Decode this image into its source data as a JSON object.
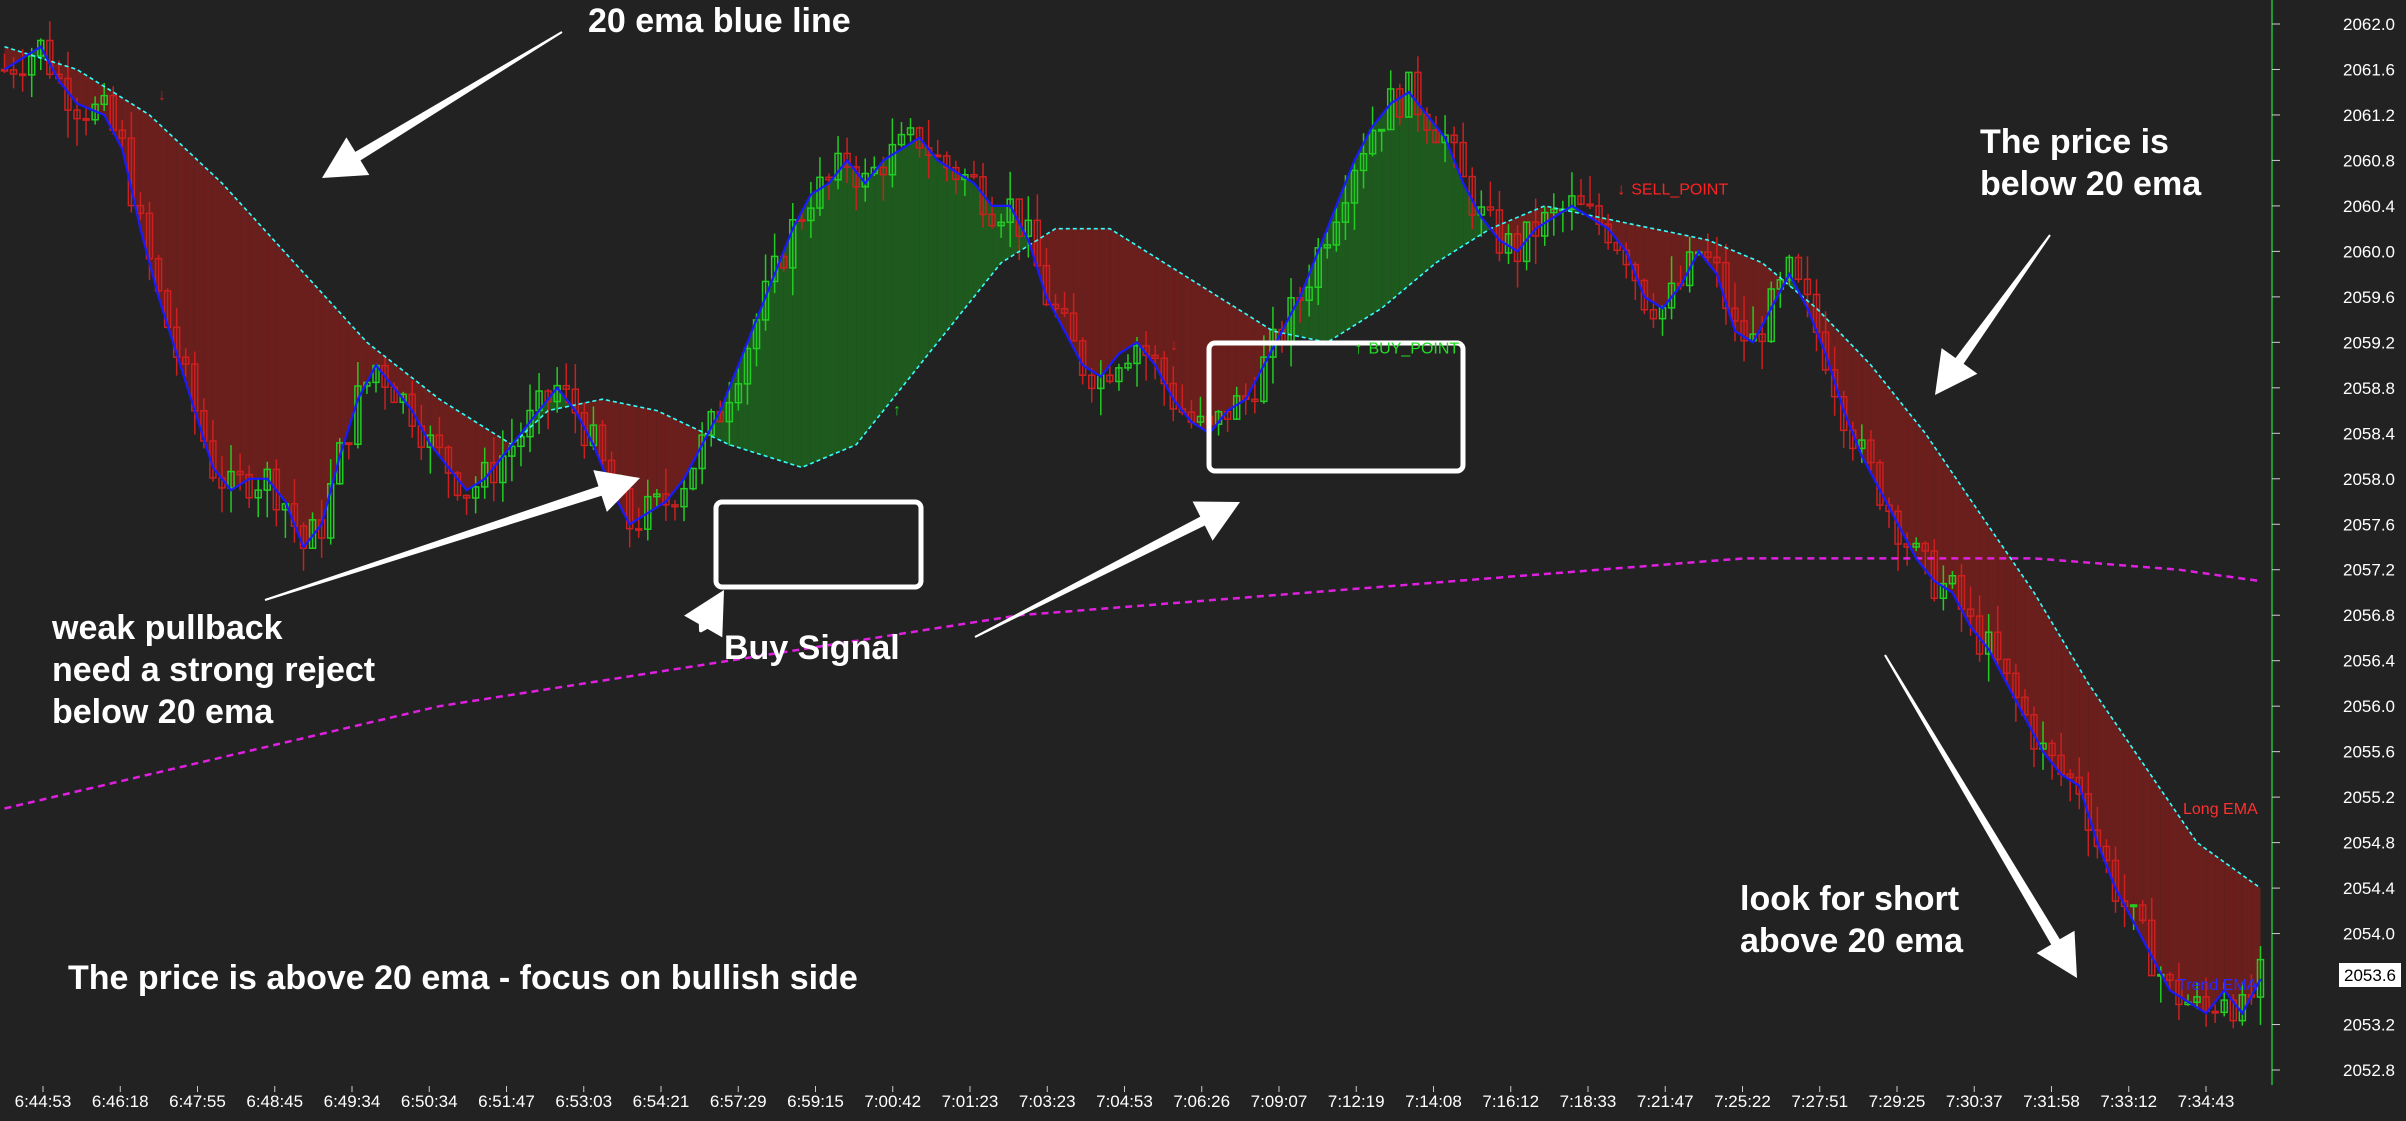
{
  "chart_data": {
    "type": "line",
    "title": "",
    "xlabel": "",
    "ylabel": "",
    "y_range": [
      2052.6,
      2062.1
    ],
    "y_ticks": [
      2062.0,
      2061.6,
      2061.2,
      2060.8,
      2060.4,
      2060.0,
      2059.6,
      2059.2,
      2058.8,
      2058.4,
      2058.0,
      2057.6,
      2057.2,
      2056.8,
      2056.4,
      2056.0,
      2055.6,
      2055.2,
      2054.8,
      2054.4,
      2054.0,
      2053.2,
      2052.8
    ],
    "y_tick_labels": [
      "2062.0",
      "2061.6",
      "2061.2",
      "2060.8",
      "2060.4",
      "2060.0",
      "2059.6",
      "2059.2",
      "2058.8",
      "2058.4",
      "2058.0",
      "2057.6",
      "2057.2",
      "2056.8",
      "2056.4",
      "2056.0",
      "2055.6",
      "2055.2",
      "2054.8",
      "2054.4",
      "2054.0",
      "2053.2",
      "2052.8"
    ],
    "current_price": "2053.6",
    "x_tick_labels": [
      "6:44:53",
      "6:46:18",
      "6:47:55",
      "6:48:45",
      "6:49:34",
      "6:50:34",
      "6:51:47",
      "6:53:03",
      "6:54:21",
      "6:57:29",
      "6:59:15",
      "7:00:42",
      "7:01:23",
      "7:03:23",
      "7:04:53",
      "7:06:26",
      "7:09:07",
      "7:12:19",
      "7:14:08",
      "7:16:12",
      "7:18:33",
      "7:21:47",
      "7:25:22",
      "7:27:51",
      "7:29:25",
      "7:30:37",
      "7:31:58",
      "7:33:12",
      "7:34:43"
    ],
    "price_path": [
      [
        0,
        2061.6
      ],
      [
        4,
        2061.8
      ],
      [
        6,
        2061.5
      ],
      [
        8,
        2061.3
      ],
      [
        11,
        2061.2
      ],
      [
        13,
        2060.9
      ],
      [
        15,
        2060.2
      ],
      [
        17,
        2059.6
      ],
      [
        19,
        2059.1
      ],
      [
        21,
        2058.6
      ],
      [
        23,
        2058.1
      ],
      [
        25,
        2057.9
      ],
      [
        27,
        2058.0
      ],
      [
        29,
        2058.0
      ],
      [
        31,
        2057.8
      ],
      [
        33,
        2057.4
      ],
      [
        35,
        2057.6
      ],
      [
        37,
        2058.2
      ],
      [
        39,
        2058.7
      ],
      [
        41,
        2059.0
      ],
      [
        43,
        2058.8
      ],
      [
        45,
        2058.6
      ],
      [
        47,
        2058.3
      ],
      [
        49,
        2058.1
      ],
      [
        51,
        2057.9
      ],
      [
        53,
        2058.0
      ],
      [
        56,
        2058.3
      ],
      [
        59,
        2058.6
      ],
      [
        61,
        2058.8
      ],
      [
        63,
        2058.6
      ],
      [
        65,
        2058.3
      ],
      [
        67,
        2057.9
      ],
      [
        69,
        2057.6
      ],
      [
        71,
        2057.7
      ],
      [
        73,
        2057.8
      ],
      [
        75,
        2058.0
      ],
      [
        77,
        2058.3
      ],
      [
        79,
        2058.6
      ],
      [
        81,
        2059.0
      ],
      [
        83,
        2059.4
      ],
      [
        85,
        2059.8
      ],
      [
        87,
        2060.2
      ],
      [
        89,
        2060.5
      ],
      [
        91,
        2060.6
      ],
      [
        93,
        2060.8
      ],
      [
        95,
        2060.6
      ],
      [
        97,
        2060.8
      ],
      [
        99,
        2060.9
      ],
      [
        101,
        2061.0
      ],
      [
        103,
        2060.8
      ],
      [
        105,
        2060.7
      ],
      [
        107,
        2060.6
      ],
      [
        109,
        2060.4
      ],
      [
        111,
        2060.4
      ],
      [
        113,
        2060.1
      ],
      [
        115,
        2059.6
      ],
      [
        117,
        2059.3
      ],
      [
        119,
        2059.0
      ],
      [
        121,
        2058.9
      ],
      [
        123,
        2059.1
      ],
      [
        125,
        2059.2
      ],
      [
        127,
        2059.0
      ],
      [
        129,
        2058.7
      ],
      [
        131,
        2058.5
      ],
      [
        133,
        2058.4
      ],
      [
        135,
        2058.6
      ],
      [
        137,
        2058.7
      ],
      [
        139,
        2059.0
      ],
      [
        141,
        2059.3
      ],
      [
        143,
        2059.6
      ],
      [
        145,
        2060.0
      ],
      [
        147,
        2060.4
      ],
      [
        149,
        2060.8
      ],
      [
        151,
        2061.1
      ],
      [
        153,
        2061.3
      ],
      [
        155,
        2061.4
      ],
      [
        157,
        2061.2
      ],
      [
        159,
        2061.0
      ],
      [
        161,
        2060.6
      ],
      [
        163,
        2060.3
      ],
      [
        165,
        2060.1
      ],
      [
        167,
        2060.0
      ],
      [
        169,
        2060.2
      ],
      [
        171,
        2060.3
      ],
      [
        173,
        2060.4
      ],
      [
        175,
        2060.3
      ],
      [
        177,
        2060.2
      ],
      [
        179,
        2060.0
      ],
      [
        181,
        2059.6
      ],
      [
        183,
        2059.5
      ],
      [
        185,
        2059.7
      ],
      [
        187,
        2060.0
      ],
      [
        189,
        2059.8
      ],
      [
        191,
        2059.3
      ],
      [
        193,
        2059.2
      ],
      [
        195,
        2059.5
      ],
      [
        197,
        2059.8
      ],
      [
        199,
        2059.5
      ],
      [
        201,
        2059.1
      ],
      [
        203,
        2058.6
      ],
      [
        205,
        2058.2
      ],
      [
        207,
        2057.9
      ],
      [
        209,
        2057.6
      ],
      [
        211,
        2057.3
      ],
      [
        213,
        2057.1
      ],
      [
        215,
        2057.0
      ],
      [
        217,
        2056.7
      ],
      [
        219,
        2056.5
      ],
      [
        221,
        2056.2
      ],
      [
        223,
        2055.9
      ],
      [
        225,
        2055.6
      ],
      [
        227,
        2055.4
      ],
      [
        229,
        2055.3
      ],
      [
        231,
        2054.8
      ],
      [
        233,
        2054.4
      ],
      [
        235,
        2054.1
      ],
      [
        237,
        2053.8
      ],
      [
        239,
        2053.5
      ],
      [
        241,
        2053.4
      ],
      [
        243,
        2053.3
      ],
      [
        245,
        2053.5
      ],
      [
        247,
        2053.3
      ],
      [
        249,
        2053.6
      ]
    ],
    "mid_line_path": [
      [
        0,
        2061.8
      ],
      [
        8,
        2061.6
      ],
      [
        16,
        2061.2
      ],
      [
        24,
        2060.6
      ],
      [
        32,
        2059.9
      ],
      [
        40,
        2059.2
      ],
      [
        48,
        2058.7
      ],
      [
        56,
        2058.3
      ],
      [
        60,
        2058.6
      ],
      [
        66,
        2058.7
      ],
      [
        72,
        2058.6
      ],
      [
        80,
        2058.3
      ],
      [
        88,
        2058.1
      ],
      [
        94,
        2058.3
      ],
      [
        98,
        2058.7
      ],
      [
        104,
        2059.3
      ],
      [
        110,
        2059.9
      ],
      [
        116,
        2060.2
      ],
      [
        122,
        2060.2
      ],
      [
        128,
        2059.9
      ],
      [
        134,
        2059.6
      ],
      [
        140,
        2059.3
      ],
      [
        146,
        2059.2
      ],
      [
        152,
        2059.5
      ],
      [
        158,
        2059.9
      ],
      [
        164,
        2060.2
      ],
      [
        170,
        2060.4
      ],
      [
        176,
        2060.3
      ],
      [
        182,
        2060.2
      ],
      [
        188,
        2060.1
      ],
      [
        194,
        2059.9
      ],
      [
        200,
        2059.5
      ],
      [
        206,
        2059.0
      ],
      [
        212,
        2058.4
      ],
      [
        218,
        2057.7
      ],
      [
        224,
        2057.0
      ],
      [
        230,
        2056.2
      ],
      [
        236,
        2055.5
      ],
      [
        242,
        2054.8
      ],
      [
        249,
        2054.4
      ]
    ],
    "band_fill_colors": [
      "#6b1f1c",
      "#1e5a1e"
    ],
    "long_ema_path": [
      [
        0,
        2055.1
      ],
      [
        16,
        2055.4
      ],
      [
        32,
        2055.7
      ],
      [
        48,
        2056.0
      ],
      [
        64,
        2056.2
      ],
      [
        80,
        2056.4
      ],
      [
        96,
        2056.6
      ],
      [
        112,
        2056.8
      ],
      [
        128,
        2056.9
      ],
      [
        144,
        2057.0
      ],
      [
        160,
        2057.1
      ],
      [
        176,
        2057.2
      ],
      [
        192,
        2057.3
      ],
      [
        208,
        2057.3
      ],
      [
        224,
        2057.3
      ],
      [
        240,
        2057.2
      ],
      [
        249,
        2057.1
      ]
    ],
    "signals": [
      {
        "label": "SELL_POINT",
        "color": "#ff2222",
        "x": 178,
        "y": 2060.5
      },
      {
        "label": "BUY_POINT",
        "color": "#22dd22",
        "x": 149,
        "y": 2059.1
      }
    ],
    "series_labels": [
      {
        "label": "Long EMA",
        "color": "#ff3030"
      },
      {
        "label": "Trend EMA",
        "color": "#2a2aff"
      }
    ],
    "colors": {
      "background": "#222222",
      "bull": "#22cc22",
      "bear": "#cc1f1f",
      "ema20": "#1a1aff",
      "mid_line": "#33ffff",
      "long_ema": "#e020e0",
      "band_bear": "#6b1f1c",
      "band_bull": "#1e5a1e"
    }
  },
  "annotations": {
    "ema_blue": "20 ema blue line",
    "weak_pullback": "weak pullback\nneed a strong reject\nbelow 20 ema",
    "buy_signal": "Buy Signal",
    "above_ema": "The price is above 20 ema - focus on bullish side",
    "below_ema": "The price is\nbelow 20 ema",
    "look_short": "look for short\nabove 20 ema"
  }
}
